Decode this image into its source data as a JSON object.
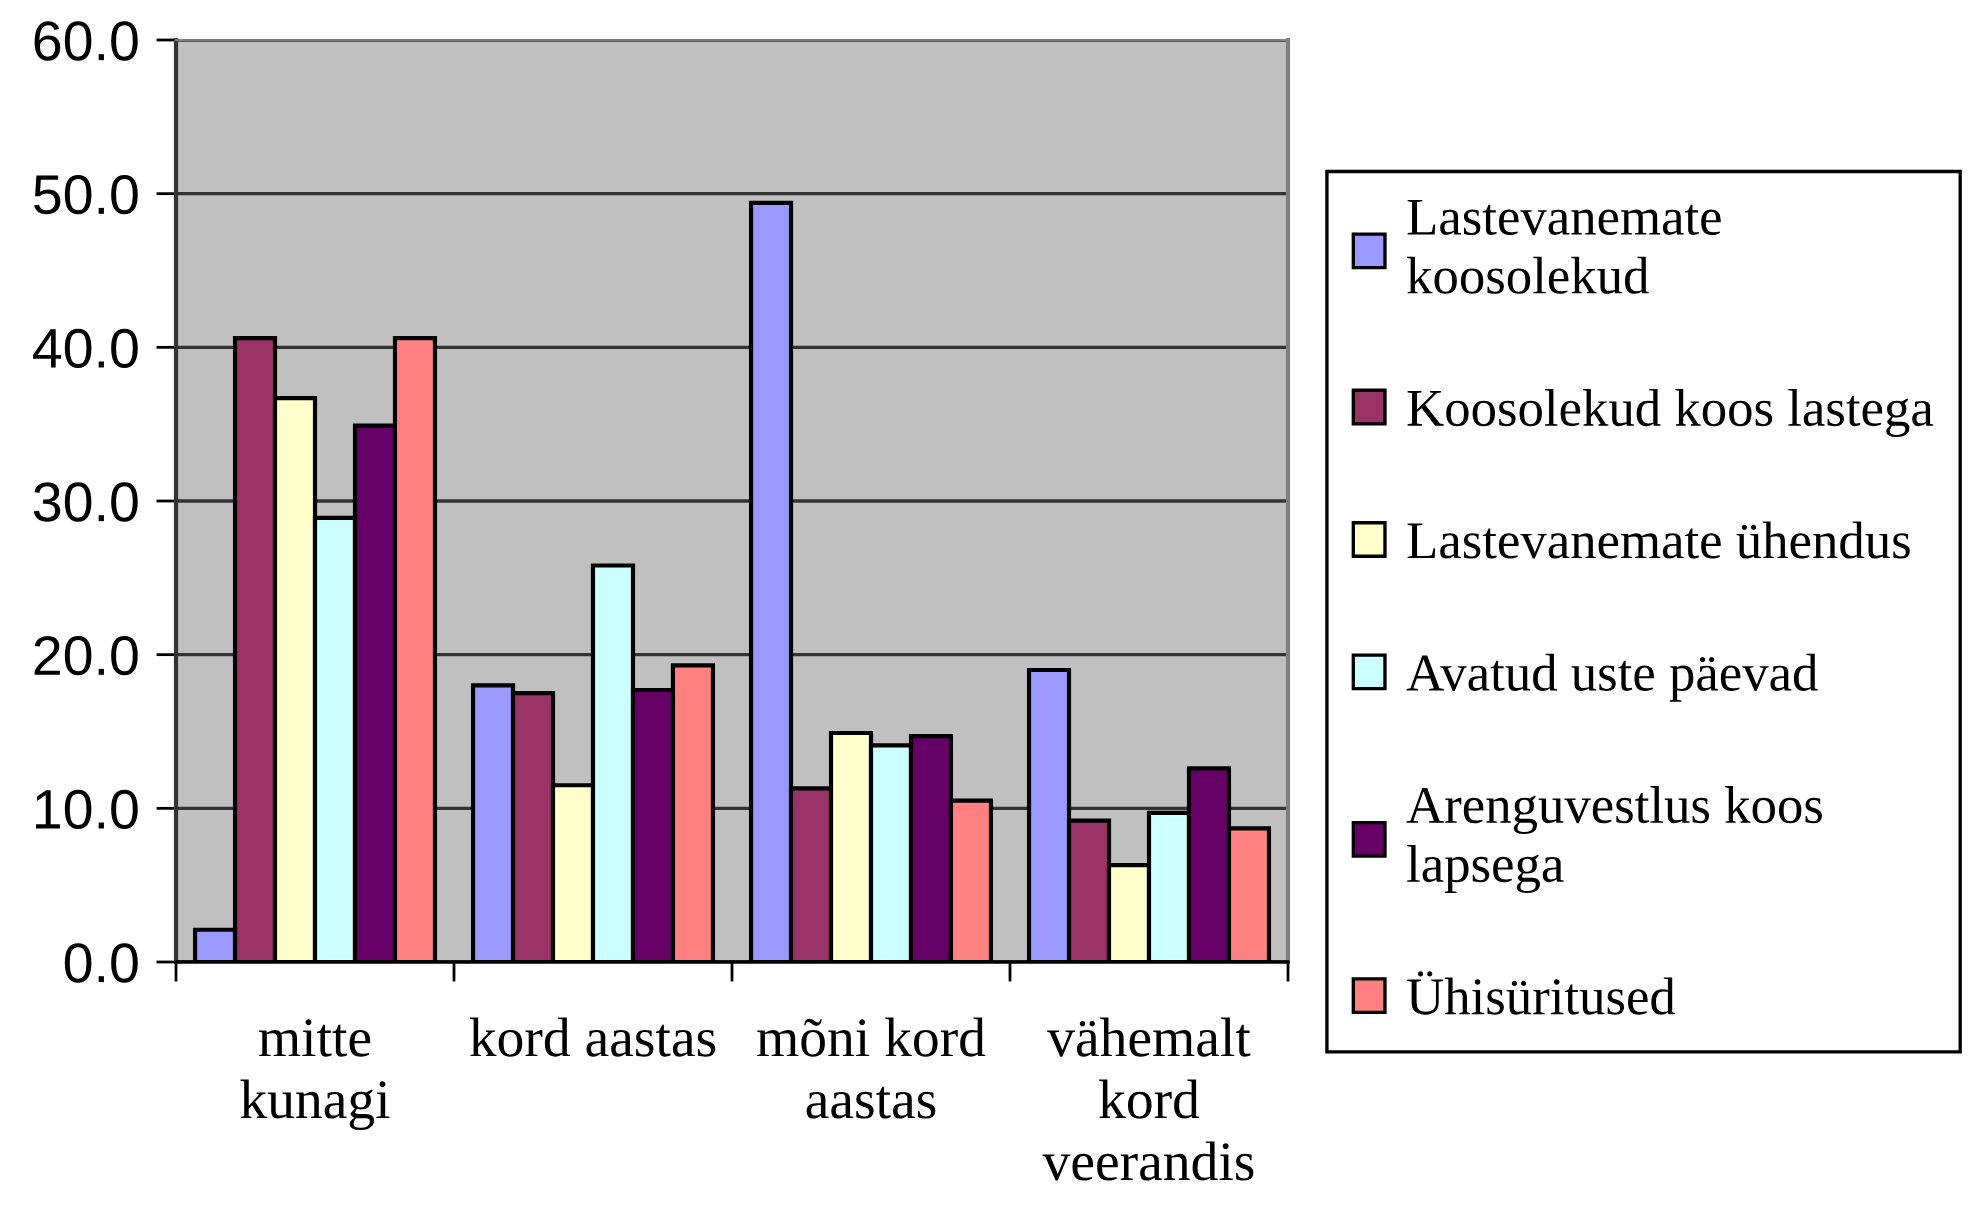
{
  "chart_data": {
    "type": "bar",
    "categories": [
      "mitte\nkunagi",
      "kord aastas",
      "mõni kord\naastas",
      "vähemalt\nkord\nveerandis"
    ],
    "series": [
      {
        "name": "Lastevanemate\nkoosolekud",
        "color": "#9999ff",
        "values": [
          2.1,
          18.0,
          49.4,
          19.0
        ]
      },
      {
        "name": "Koosolekud koos lastega",
        "color": "#993366",
        "values": [
          40.6,
          17.5,
          11.3,
          9.2
        ]
      },
      {
        "name": "Lastevanemate ühendus",
        "color": "#ffffcc",
        "values": [
          36.7,
          11.5,
          14.9,
          6.3
        ]
      },
      {
        "name": "Avatud uste päevad",
        "color": "#ccffff",
        "values": [
          28.9,
          25.8,
          14.1,
          9.7
        ]
      },
      {
        "name": "Arenguvestlus koos\nlapsega",
        "color": "#660066",
        "values": [
          34.9,
          17.7,
          14.7,
          12.6
        ]
      },
      {
        "name": "Ühisüritused",
        "color": "#ff8080",
        "values": [
          40.6,
          19.3,
          10.5,
          8.7
        ]
      }
    ],
    "ylim": [
      0,
      60
    ],
    "yticks": [
      {
        "value": 0,
        "label": "0.0"
      },
      {
        "value": 10,
        "label": "10.0"
      },
      {
        "value": 20,
        "label": "20.0"
      },
      {
        "value": 30,
        "label": "30.0"
      },
      {
        "value": 40,
        "label": "40.0"
      },
      {
        "value": 50,
        "label": "50.0"
      },
      {
        "value": 60,
        "label": "60.0"
      }
    ],
    "grid": "y",
    "legend": "right"
  }
}
